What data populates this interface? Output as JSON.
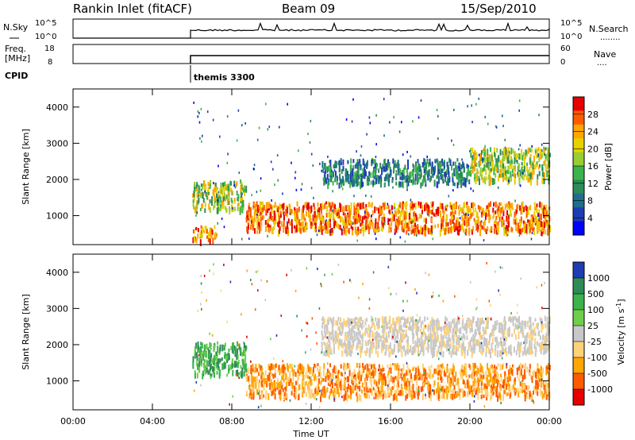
{
  "header": {
    "station": "Rankin Inlet (fitACF)",
    "beam": "Beam 09",
    "date": "15/Sep/2010"
  },
  "noise_panel": {
    "left_label": "N.Sky",
    "left_ticks": [
      "10^5",
      "10^0"
    ],
    "right_label": "N.Search",
    "right_ticks": [
      "10^5",
      "10^0"
    ],
    "dots": "........"
  },
  "freq_panel": {
    "left_label_1": "Freq.",
    "left_label_2": "[MHz]",
    "left_ticks": [
      "18",
      "8"
    ],
    "right_label": "Nave",
    "right_ticks": [
      "60",
      "0"
    ],
    "dots": "....",
    "cpid_label": "CPID",
    "cpid_value": "themis 3300"
  },
  "chart_data": [
    {
      "type": "heatmap",
      "name": "power",
      "ylabel": "Slant Range [km]",
      "yticks": [
        "4000",
        "3000",
        "2000",
        "1000"
      ],
      "ylim": [
        200,
        4500
      ],
      "xlim": [
        0,
        24
      ],
      "colorbar_label": "Power [dB]",
      "colorbar_ticks": [
        "28",
        "24",
        "20",
        "16",
        "12",
        "8",
        "4"
      ],
      "colorbar_colors": [
        "#e60000",
        "#ff5a00",
        "#ffa500",
        "#e6d200",
        "#9acd32",
        "#3cb44b",
        "#2e8b57",
        "#1f6e8c",
        "#1e3cb4",
        "#0000ff"
      ],
      "scatter_bands": [
        {
          "t0": 6.0,
          "t1": 7.2,
          "r0": 350,
          "r1": 750,
          "value": "high"
        },
        {
          "t0": 6.0,
          "t1": 8.7,
          "r0": 1200,
          "r1": 2000,
          "value": "mid"
        },
        {
          "t0": 8.7,
          "t1": 24.0,
          "r0": 600,
          "r1": 1400,
          "value": "high"
        },
        {
          "t0": 12.5,
          "t1": 20.0,
          "r0": 1900,
          "r1": 2600,
          "value": "low"
        },
        {
          "t0": 20.0,
          "t1": 24.0,
          "r0": 2000,
          "r1": 2900,
          "value": "mid"
        }
      ]
    },
    {
      "type": "heatmap",
      "name": "velocity",
      "ylabel": "Slant Range [km]",
      "yticks": [
        "4000",
        "3000",
        "2000",
        "1000"
      ],
      "ylim": [
        200,
        4500
      ],
      "xlim": [
        0,
        24
      ],
      "xticks": [
        "00:00",
        "04:00",
        "08:00",
        "12:00",
        "16:00",
        "20:00",
        "00:00"
      ],
      "xlabel": "Time UT",
      "colorbar_label": "Velocity [m s",
      "colorbar_label_exp": "-1",
      "colorbar_ticks": [
        "1000",
        "500",
        "100",
        "25",
        "-25",
        "-100",
        "-500",
        "-1000"
      ],
      "colorbar_colors": [
        "#1e3cb4",
        "#2e8b57",
        "#3cb44b",
        "#6fcf4a",
        "#c8c8c8",
        "#ffd27a",
        "#ffa500",
        "#ff5a00",
        "#e60000"
      ],
      "scatter_bands": [
        {
          "t0": 6.0,
          "t1": 8.7,
          "r0": 1200,
          "r1": 2100,
          "value": "green"
        },
        {
          "t0": 8.7,
          "t1": 24.0,
          "r0": 600,
          "r1": 1500,
          "value": "orange"
        },
        {
          "t0": 12.5,
          "t1": 24.0,
          "r0": 1800,
          "r1": 2800,
          "value": "grey"
        }
      ]
    }
  ]
}
